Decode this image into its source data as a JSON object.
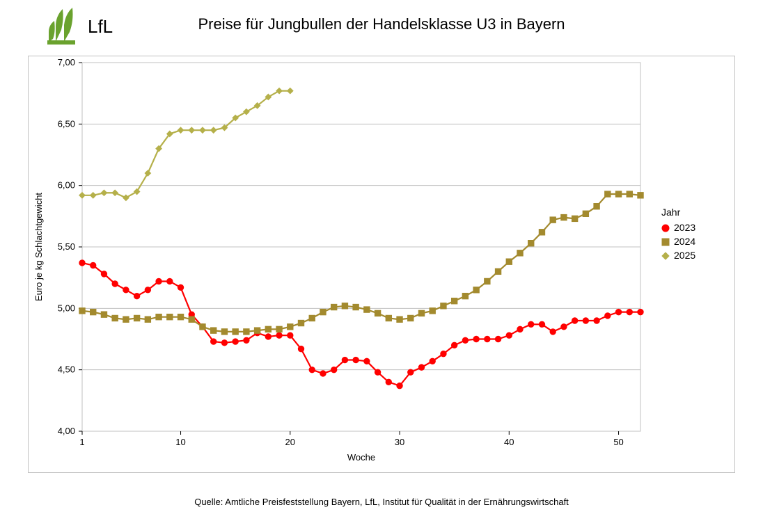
{
  "header": {
    "logo_text": "LfL"
  },
  "title": "Preise für Jungbullen der Handelsklasse U3 in Bayern",
  "source": "Quelle: Amtliche Preisfeststellung Bayern, LfL, Institut für Qualität in der Ernährungswirtschaft",
  "legend": {
    "title": "Jahr",
    "items": [
      {
        "label": "2023",
        "color": "#ff0000",
        "marker": "circle"
      },
      {
        "label": "2024",
        "color": "#a38a2e",
        "marker": "square"
      },
      {
        "label": "2025",
        "color": "#b5b04a",
        "marker": "diamond"
      }
    ]
  },
  "chart": {
    "type": "line",
    "background_color": "#ffffff",
    "plot_border_color": "#c0c0c0",
    "grid_color": "#c0c0c0",
    "axis_text_color": "#000000",
    "line_width": 2.2,
    "marker_size": 4.2,
    "x_axis": {
      "label": "Woche",
      "min": 1,
      "max": 52,
      "ticks": [
        1,
        10,
        20,
        30,
        40,
        50
      ],
      "tick_labels": [
        "1",
        "10",
        "20",
        "30",
        "40",
        "50"
      ],
      "label_fontsize": 13,
      "tick_fontsize": 13
    },
    "y_axis": {
      "label": "Euro je kg Schlachtgewicht",
      "min": 4.0,
      "max": 7.0,
      "ticks": [
        4.0,
        4.5,
        5.0,
        5.5,
        6.0,
        6.5,
        7.0
      ],
      "tick_labels": [
        "4,00",
        "4,50",
        "5,00",
        "5,50",
        "6,00",
        "6,50",
        "7,00"
      ],
      "label_fontsize": 13,
      "tick_fontsize": 13
    },
    "series": [
      {
        "name": "2023",
        "color": "#ff0000",
        "marker": "circle",
        "x": [
          1,
          2,
          3,
          4,
          5,
          6,
          7,
          8,
          9,
          10,
          11,
          12,
          13,
          14,
          15,
          16,
          17,
          18,
          19,
          20,
          21,
          22,
          23,
          24,
          25,
          26,
          27,
          28,
          29,
          30,
          31,
          32,
          33,
          34,
          35,
          36,
          37,
          38,
          39,
          40,
          41,
          42,
          43,
          44,
          45,
          46,
          47,
          48,
          49,
          50,
          51,
          52
        ],
        "y": [
          5.37,
          5.35,
          5.28,
          5.2,
          5.15,
          5.1,
          5.15,
          5.22,
          5.22,
          5.17,
          4.95,
          4.85,
          4.73,
          4.72,
          4.73,
          4.74,
          4.8,
          4.77,
          4.78,
          4.78,
          4.67,
          4.5,
          4.47,
          4.5,
          4.58,
          4.58,
          4.57,
          4.48,
          4.4,
          4.37,
          4.48,
          4.52,
          4.57,
          4.63,
          4.7,
          4.74,
          4.75,
          4.75,
          4.75,
          4.78,
          4.83,
          4.87,
          4.87,
          4.81,
          4.85,
          4.9,
          4.9,
          4.9,
          4.94,
          4.97,
          4.97,
          4.97
        ]
      },
      {
        "name": "2024",
        "color": "#a38a2e",
        "marker": "square",
        "x": [
          1,
          2,
          3,
          4,
          5,
          6,
          7,
          8,
          9,
          10,
          11,
          12,
          13,
          14,
          15,
          16,
          17,
          18,
          19,
          20,
          21,
          22,
          23,
          24,
          25,
          26,
          27,
          28,
          29,
          30,
          31,
          32,
          33,
          34,
          35,
          36,
          37,
          38,
          39,
          40,
          41,
          42,
          43,
          44,
          45,
          46,
          47,
          48,
          49,
          50,
          51,
          52
        ],
        "y": [
          4.98,
          4.97,
          4.95,
          4.92,
          4.91,
          4.92,
          4.91,
          4.93,
          4.93,
          4.93,
          4.91,
          4.85,
          4.82,
          4.81,
          4.81,
          4.81,
          4.82,
          4.83,
          4.83,
          4.85,
          4.88,
          4.92,
          4.97,
          5.01,
          5.02,
          5.01,
          4.99,
          4.96,
          4.92,
          4.91,
          4.92,
          4.96,
          4.98,
          5.02,
          5.06,
          5.1,
          5.15,
          5.22,
          5.3,
          5.38,
          5.45,
          5.53,
          5.62,
          5.72,
          5.74,
          5.73,
          5.77,
          5.83,
          5.93,
          5.93,
          5.93,
          5.92
        ]
      },
      {
        "name": "2025",
        "color": "#b5b04a",
        "marker": "diamond",
        "x": [
          1,
          2,
          3,
          4,
          5,
          6,
          7,
          8,
          9,
          10,
          11,
          12,
          13,
          14,
          15,
          16,
          17,
          18,
          19,
          20
        ],
        "y": [
          5.92,
          5.92,
          5.94,
          5.94,
          5.9,
          5.95,
          6.1,
          6.3,
          6.42,
          6.45,
          6.45,
          6.45,
          6.45,
          6.47,
          6.55,
          6.6,
          6.65,
          6.72,
          6.77,
          6.77
        ]
      }
    ]
  }
}
